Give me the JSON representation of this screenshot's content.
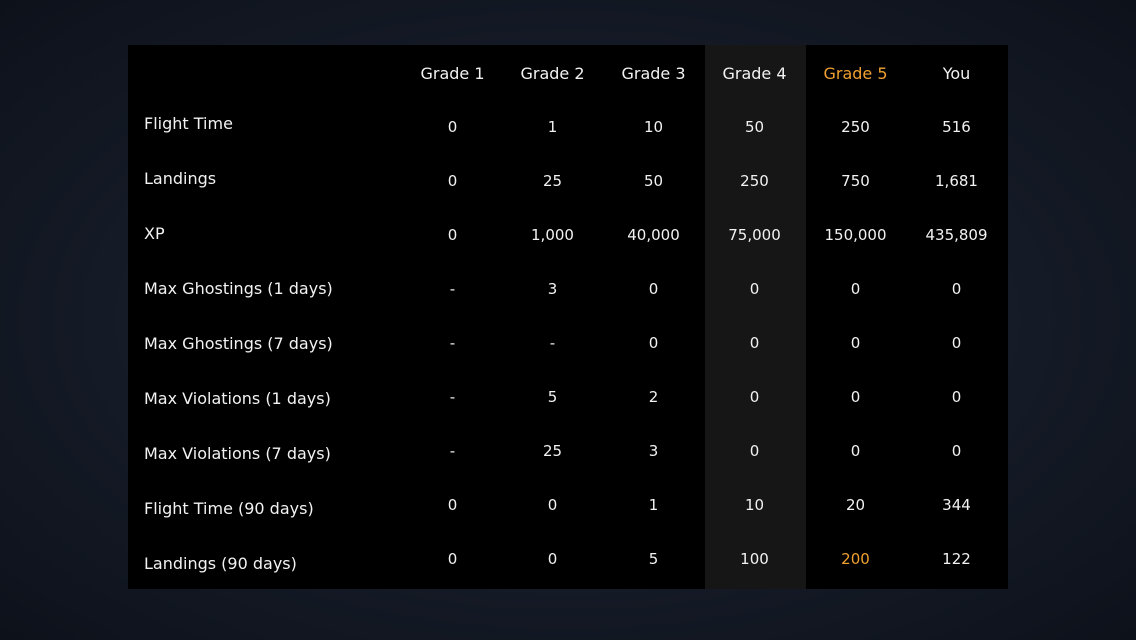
{
  "accent_color": "#f0a030",
  "columns": [
    "Grade 1",
    "Grade 2",
    "Grade 3",
    "Grade 4",
    "Grade 5",
    "You"
  ],
  "rows": [
    {
      "label": "Flight Time",
      "values": [
        "0",
        "1",
        "10",
        "50",
        "250",
        "516"
      ]
    },
    {
      "label": "Landings",
      "values": [
        "0",
        "25",
        "50",
        "250",
        "750",
        "1,681"
      ]
    },
    {
      "label": "XP",
      "values": [
        "0",
        "1,000",
        "40,000",
        "75,000",
        "150,000",
        "435,809"
      ]
    },
    {
      "label": "Max Ghostings (1 days)",
      "values": [
        "-",
        "3",
        "0",
        "0",
        "0",
        "0"
      ]
    },
    {
      "label": "Max Ghostings (7 days)",
      "values": [
        "-",
        "-",
        "0",
        "0",
        "0",
        "0"
      ]
    },
    {
      "label": "Max Violations (1 days)",
      "values": [
        "-",
        "5",
        "2",
        "0",
        "0",
        "0"
      ]
    },
    {
      "label": "Max Violations (7 days)",
      "values": [
        "-",
        "25",
        "3",
        "0",
        "0",
        "0"
      ]
    },
    {
      "label": "Flight Time (90 days)",
      "values": [
        "0",
        "0",
        "1",
        "10",
        "20",
        "344"
      ]
    },
    {
      "label": "Landings (90 days)",
      "values": [
        "0",
        "0",
        "5",
        "100",
        "200",
        "122"
      ]
    }
  ]
}
